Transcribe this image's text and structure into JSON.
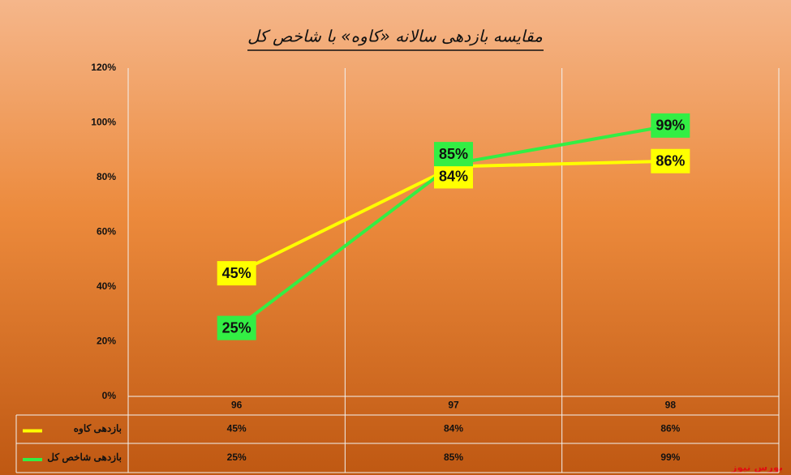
{
  "chart_data": {
    "type": "line",
    "title": "مقایسه بازدهی سالانه «کاوه» با شاخص کل",
    "categories": [
      "96",
      "97",
      "98"
    ],
    "series": [
      {
        "name": "بازدهی کاوه",
        "color": "#ffff00",
        "values": [
          45,
          84,
          86
        ],
        "value_labels": [
          "45%",
          "84%",
          "86%"
        ]
      },
      {
        "name": "بازدهی شاخص کل",
        "color": "#33ee44",
        "values": [
          25,
          85,
          99
        ],
        "value_labels": [
          "25%",
          "85%",
          "99%"
        ]
      }
    ],
    "ylim": [
      0,
      120
    ],
    "yticks": [
      {
        "value": 0,
        "label": "0%"
      },
      {
        "value": 20,
        "label": "20%"
      },
      {
        "value": 40,
        "label": "40%"
      },
      {
        "value": 60,
        "label": "60%"
      },
      {
        "value": 80,
        "label": "80%"
      },
      {
        "value": 100,
        "label": "100%"
      },
      {
        "value": 120,
        "label": "120%"
      }
    ],
    "source": "بورس نیوز"
  }
}
